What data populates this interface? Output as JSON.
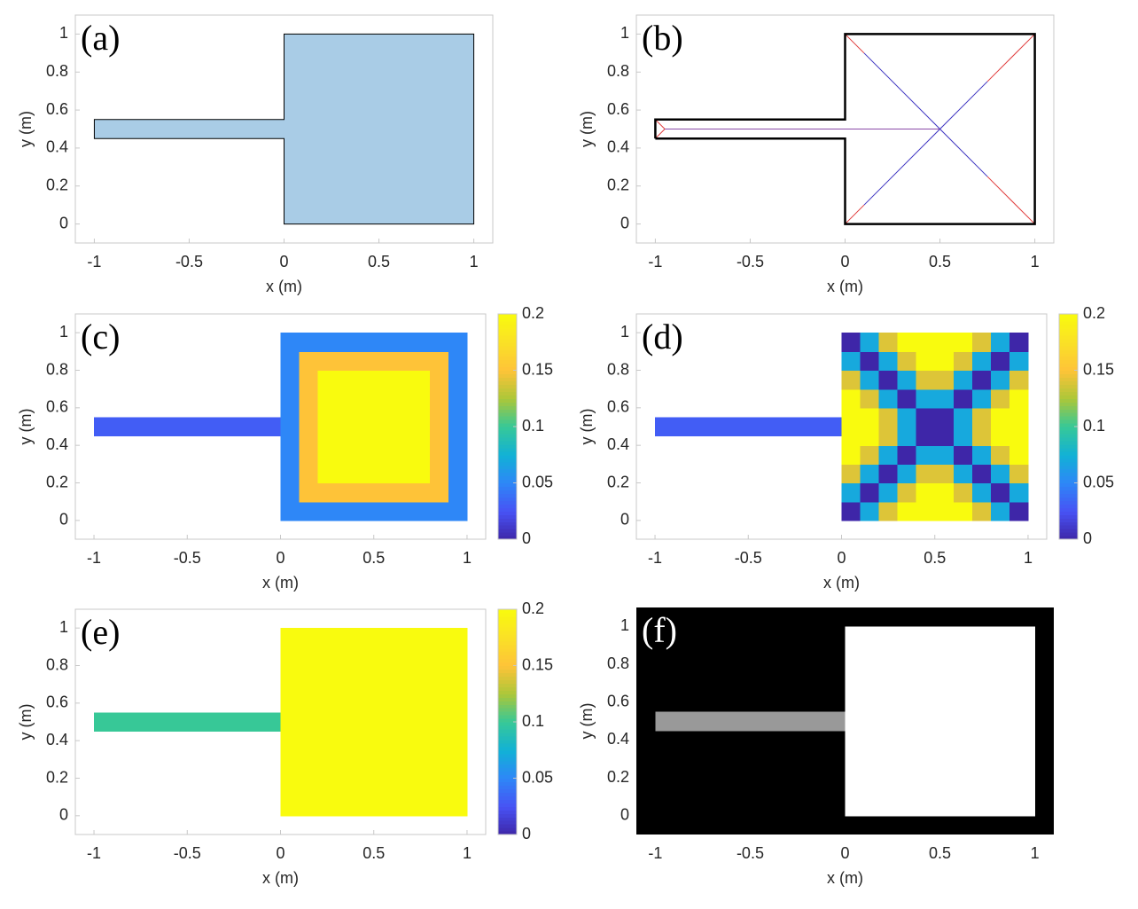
{
  "chart_data": [
    {
      "type": "area",
      "label": "(a)",
      "xlabel": "x (m)",
      "ylabel": "y (m)",
      "xlim": [
        -1.1,
        1.1
      ],
      "ylim": [
        -0.1,
        1.1
      ],
      "xticks": [
        -1,
        -0.5,
        0,
        0.5,
        1
      ],
      "yticks": [
        0,
        0.2,
        0.4,
        0.6,
        0.8,
        1
      ],
      "color": "#a9cce6",
      "edgecolor": "#000000",
      "x": [
        -1,
        0,
        0,
        1,
        1,
        0,
        0,
        -1
      ],
      "y": [
        0.45,
        0.45,
        0,
        0,
        1,
        1,
        0.55,
        0.55
      ]
    },
    {
      "type": "line",
      "label": "(b)",
      "xlabel": "x (m)",
      "ylabel": "y (m)",
      "xlim": [
        -1.1,
        1.1
      ],
      "ylim": [
        -0.1,
        1.1
      ],
      "xticks": [
        -1,
        -0.5,
        0,
        0.5,
        1
      ],
      "yticks": [
        0,
        0.2,
        0.4,
        0.6,
        0.8,
        1
      ],
      "edgecolor": "#000000",
      "x": [
        -1,
        0,
        0,
        1,
        1,
        0,
        0,
        -1,
        -1
      ],
      "y": [
        0.45,
        0.45,
        0,
        0,
        1,
        1,
        0.55,
        0.55,
        0.45
      ],
      "segments": [
        {
          "color": "#e03a3a",
          "x": [
            -1,
            -0.95,
            -1
          ],
          "y": [
            0.55,
            0.5,
            0.45
          ]
        },
        {
          "color": "#e03a3a",
          "x": [
            0,
            0.1
          ],
          "y": [
            1,
            0.9
          ]
        },
        {
          "color": "#e03a3a",
          "x": [
            0,
            0.1
          ],
          "y": [
            0,
            0.1
          ]
        },
        {
          "color": "#e03a3a",
          "x": [
            1,
            0.75
          ],
          "y": [
            1,
            0.75
          ]
        },
        {
          "color": "#e03a3a",
          "x": [
            1,
            0.75
          ],
          "y": [
            0,
            0.25
          ]
        },
        {
          "color": "#3a30c0",
          "x": [
            0.1,
            0.5
          ],
          "y": [
            0.9,
            0.5
          ]
        },
        {
          "color": "#3a30c0",
          "x": [
            0.1,
            0.5
          ],
          "y": [
            0.1,
            0.5
          ]
        },
        {
          "color": "#3a30c0",
          "x": [
            0.75,
            0.5
          ],
          "y": [
            0.75,
            0.5
          ]
        },
        {
          "color": "#3a30c0",
          "x": [
            0.75,
            0.5
          ],
          "y": [
            0.25,
            0.5
          ]
        },
        {
          "color": "#8a4aa8",
          "x": [
            -0.95,
            0.5
          ],
          "y": [
            0.5,
            0.5
          ]
        }
      ]
    },
    {
      "type": "heatmap",
      "label": "(c)",
      "xlabel": "x (m)",
      "ylabel": "y (m)",
      "xlim": [
        -1.1,
        1.1
      ],
      "ylim": [
        -0.1,
        1.1
      ],
      "xticks": [
        -1,
        -0.5,
        0,
        0.5,
        1
      ],
      "yticks": [
        0,
        0.2,
        0.4,
        0.6,
        0.8,
        1
      ],
      "colormap": "parula",
      "clim": [
        0,
        0.2
      ],
      "cticks": [
        0,
        0.05,
        0.1,
        0.15,
        0.2
      ],
      "strip": {
        "xlim": [
          -1,
          0
        ],
        "ylim": [
          0.45,
          0.55
        ],
        "z": [
          [
            0.03,
            0.03,
            0.03,
            0.03,
            0.03,
            0.03,
            0.03,
            0.03,
            0.03,
            0.03
          ]
        ]
      },
      "square": {
        "xlim": [
          0,
          1
        ],
        "ylim": [
          0,
          1
        ],
        "z": [
          [
            0.05,
            0.05,
            0.05,
            0.05,
            0.05,
            0.05,
            0.05,
            0.05,
            0.05,
            0.05
          ],
          [
            0.05,
            0.15,
            0.15,
            0.15,
            0.15,
            0.15,
            0.15,
            0.15,
            0.15,
            0.05
          ],
          [
            0.05,
            0.15,
            0.2,
            0.2,
            0.2,
            0.2,
            0.2,
            0.2,
            0.15,
            0.05
          ],
          [
            0.05,
            0.15,
            0.2,
            0.2,
            0.2,
            0.2,
            0.2,
            0.2,
            0.15,
            0.05
          ],
          [
            0.05,
            0.15,
            0.2,
            0.2,
            0.2,
            0.2,
            0.2,
            0.2,
            0.15,
            0.05
          ],
          [
            0.05,
            0.15,
            0.2,
            0.2,
            0.2,
            0.2,
            0.2,
            0.2,
            0.15,
            0.05
          ],
          [
            0.05,
            0.15,
            0.2,
            0.2,
            0.2,
            0.2,
            0.2,
            0.2,
            0.15,
            0.05
          ],
          [
            0.05,
            0.15,
            0.2,
            0.2,
            0.2,
            0.2,
            0.2,
            0.2,
            0.15,
            0.05
          ],
          [
            0.05,
            0.15,
            0.15,
            0.15,
            0.15,
            0.15,
            0.15,
            0.15,
            0.15,
            0.05
          ],
          [
            0.05,
            0.05,
            0.05,
            0.05,
            0.05,
            0.05,
            0.05,
            0.05,
            0.05,
            0.05
          ]
        ]
      }
    },
    {
      "type": "heatmap",
      "label": "(d)",
      "xlabel": "x (m)",
      "ylabel": "y (m)",
      "xlim": [
        -1.1,
        1.1
      ],
      "ylim": [
        -0.1,
        1.1
      ],
      "xticks": [
        -1,
        -0.5,
        0,
        0.5,
        1
      ],
      "yticks": [
        0,
        0.2,
        0.4,
        0.6,
        0.8,
        1
      ],
      "colormap": "parula",
      "clim": [
        0,
        0.2
      ],
      "cticks": [
        0,
        0.05,
        0.1,
        0.15,
        0.2
      ],
      "strip": {
        "xlim": [
          -1,
          0
        ],
        "ylim": [
          0.45,
          0.55
        ],
        "z": [
          [
            0.03,
            0.03,
            0.03,
            0.03,
            0.03,
            0.03,
            0.03,
            0.03,
            0.03,
            0.03
          ]
        ]
      },
      "square": {
        "xlim": [
          0,
          1
        ],
        "ylim": [
          0,
          1
        ],
        "z": [
          [
            0,
            0.07,
            0.14,
            0.2,
            0.2,
            0.2,
            0.2,
            0.14,
            0.07,
            0
          ],
          [
            0.07,
            0,
            0.07,
            0.14,
            0.2,
            0.2,
            0.14,
            0.07,
            0,
            0.07
          ],
          [
            0.14,
            0.07,
            0,
            0.07,
            0.14,
            0.14,
            0.07,
            0,
            0.07,
            0.14
          ],
          [
            0.2,
            0.14,
            0.07,
            0,
            0.07,
            0.07,
            0,
            0.07,
            0.14,
            0.2
          ],
          [
            0.2,
            0.2,
            0.14,
            0.07,
            0,
            0,
            0.07,
            0.14,
            0.2,
            0.2
          ],
          [
            0.2,
            0.2,
            0.14,
            0.07,
            0,
            0,
            0.07,
            0.14,
            0.2,
            0.2
          ],
          [
            0.2,
            0.14,
            0.07,
            0,
            0.07,
            0.07,
            0,
            0.07,
            0.14,
            0.2
          ],
          [
            0.14,
            0.07,
            0,
            0.07,
            0.14,
            0.14,
            0.07,
            0,
            0.07,
            0.14
          ],
          [
            0.07,
            0,
            0.07,
            0.14,
            0.2,
            0.2,
            0.14,
            0.07,
            0,
            0.07
          ],
          [
            0,
            0.07,
            0.14,
            0.2,
            0.2,
            0.2,
            0.2,
            0.14,
            0.07,
            0
          ]
        ]
      }
    },
    {
      "type": "heatmap",
      "label": "(e)",
      "xlabel": "x (m)",
      "ylabel": "y (m)",
      "xlim": [
        -1.1,
        1.1
      ],
      "ylim": [
        -0.1,
        1.1
      ],
      "xticks": [
        -1,
        -0.5,
        0,
        0.5,
        1
      ],
      "yticks": [
        0,
        0.2,
        0.4,
        0.6,
        0.8,
        1
      ],
      "colormap": "parula",
      "clim": [
        0,
        0.2
      ],
      "cticks": [
        0,
        0.05,
        0.1,
        0.15,
        0.2
      ],
      "strip": {
        "xlim": [
          -1,
          0
        ],
        "ylim": [
          0.45,
          0.55
        ],
        "z": [
          [
            0.1,
            0.1,
            0.1,
            0.1,
            0.1,
            0.1,
            0.1,
            0.1,
            0.1,
            0.1
          ]
        ]
      },
      "square": {
        "xlim": [
          0,
          1
        ],
        "ylim": [
          0,
          1
        ],
        "z": [
          [
            0.2
          ]
        ]
      }
    },
    {
      "type": "image",
      "label": "(f)",
      "xlabel": "x (m)",
      "ylabel": "y (m)",
      "xlim": [
        -1.1,
        1.1
      ],
      "ylim": [
        -0.1,
        1.1
      ],
      "xticks": [
        -1,
        -0.5,
        0,
        0.5,
        1
      ],
      "yticks": [
        0,
        0.2,
        0.4,
        0.6,
        0.8,
        1
      ],
      "colormap": "gray",
      "clim": [
        0,
        1
      ],
      "background": 0,
      "strip": {
        "xlim": [
          -1,
          0
        ],
        "ylim": [
          0.45,
          0.55
        ],
        "z": [
          [
            0.6
          ]
        ]
      },
      "square": {
        "xlim": [
          0,
          1
        ],
        "ylim": [
          0,
          1
        ],
        "z": [
          [
            1
          ]
        ]
      }
    }
  ]
}
